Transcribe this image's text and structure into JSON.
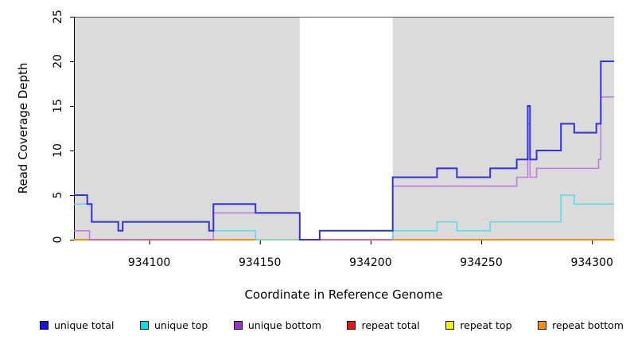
{
  "figure": {
    "title": "",
    "y_axis_label": "Read Coverage Depth",
    "x_axis_label": "Coordinate in Reference Genome"
  },
  "legend": [
    {
      "label": "unique total",
      "swatch": "#1414E0"
    },
    {
      "label": "unique top",
      "swatch": "#00E0E8"
    },
    {
      "label": "unique bottom",
      "swatch": "#9933CC"
    },
    {
      "label": "repeat total",
      "swatch": "#E81414"
    },
    {
      "label": "repeat top",
      "swatch": "#F0F000"
    },
    {
      "label": "repeat bottom",
      "swatch": "#FF9000"
    }
  ],
  "chart_data": {
    "type": "line",
    "subtype": "step-coverage",
    "title": "",
    "xlabel": "Coordinate in Reference Genome",
    "ylabel": "Read Coverage Depth",
    "xlim": [
      934066,
      934310
    ],
    "ylim": [
      0,
      25
    ],
    "x_ticks": [
      934100,
      934150,
      934200,
      934250,
      934300
    ],
    "y_ticks": [
      0,
      5,
      10,
      15,
      20,
      25
    ],
    "grid": false,
    "legend_position": "bottom",
    "plot_background_color": "#DBDBDB",
    "background_regions": [
      {
        "x": [
          934066,
          934168
        ],
        "color": "#DBDBDB"
      },
      {
        "x": [
          934210,
          934310
        ],
        "color": "#DBDBDB"
      }
    ],
    "masked_white_region": [
      934168,
      934210
    ],
    "series": [
      {
        "name": "repeat total",
        "color": "#DD2222",
        "width": 1,
        "segments": [
          [
            934066,
            934310,
            0
          ]
        ]
      },
      {
        "name": "repeat top",
        "color": "#E8E800",
        "width": 1,
        "segments": [
          [
            934066,
            934310,
            0
          ]
        ]
      },
      {
        "name": "repeat bottom",
        "color": "#FF8C00",
        "width": 2,
        "segments": [
          [
            934066,
            934310,
            0
          ]
        ]
      },
      {
        "name": "unique bottom",
        "color": "#BC79DE",
        "width": 1.5,
        "segments": [
          [
            934066,
            934073,
            1
          ],
          [
            934073,
            934129,
            0
          ],
          [
            934129,
            934168,
            3
          ],
          [
            934168,
            934210,
            0
          ],
          [
            934210,
            934266,
            6
          ],
          [
            934266,
            934271,
            7
          ],
          [
            934271,
            934272,
            13
          ],
          [
            934272,
            934275,
            7
          ],
          [
            934275,
            934303,
            8
          ],
          [
            934303,
            934304,
            9
          ],
          [
            934304,
            934310,
            16
          ]
        ]
      },
      {
        "name": "unique top",
        "color": "#52DCE8",
        "width": 1.5,
        "segments": [
          [
            934066,
            934074,
            4
          ],
          [
            934074,
            934086,
            2
          ],
          [
            934086,
            934088,
            1
          ],
          [
            934088,
            934127,
            2
          ],
          [
            934127,
            934148,
            1
          ],
          [
            934148,
            934210,
            0
          ],
          [
            934210,
            934230,
            1
          ],
          [
            934230,
            934239,
            2
          ],
          [
            934239,
            934254,
            1
          ],
          [
            934254,
            934286,
            2
          ],
          [
            934286,
            934292,
            5
          ],
          [
            934292,
            934310,
            4
          ]
        ]
      },
      {
        "name": "unique total",
        "color": "#3232DC",
        "width": 2,
        "segments": [
          [
            934066,
            934072,
            5
          ],
          [
            934072,
            934074,
            4
          ],
          [
            934074,
            934086,
            2
          ],
          [
            934086,
            934088,
            1
          ],
          [
            934088,
            934127,
            2
          ],
          [
            934127,
            934129,
            1
          ],
          [
            934129,
            934148,
            4
          ],
          [
            934148,
            934168,
            3
          ],
          [
            934168,
            934177,
            0
          ],
          [
            934177,
            934210,
            1
          ],
          [
            934210,
            934230,
            7
          ],
          [
            934230,
            934239,
            8
          ],
          [
            934239,
            934254,
            7
          ],
          [
            934254,
            934266,
            8
          ],
          [
            934266,
            934271,
            9
          ],
          [
            934271,
            934272,
            15
          ],
          [
            934272,
            934275,
            9
          ],
          [
            934275,
            934286,
            10
          ],
          [
            934286,
            934292,
            13
          ],
          [
            934292,
            934302,
            12
          ],
          [
            934302,
            934304,
            13
          ],
          [
            934304,
            934310,
            20
          ]
        ]
      }
    ],
    "zero_line_overrides": [
      {
        "x": [
          934073,
          934129
        ],
        "color": "#D4688C"
      },
      {
        "x": [
          934148,
          934168
        ],
        "color": "#8CD8A0"
      },
      {
        "x": [
          934168,
          934210
        ],
        "color": "#D4688C"
      }
    ]
  }
}
